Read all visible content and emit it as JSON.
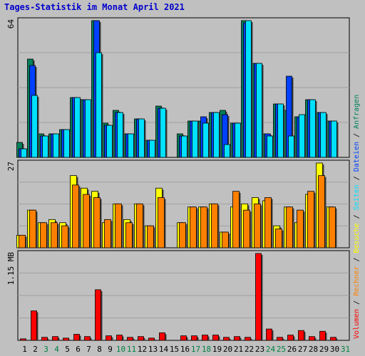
{
  "title": "Tages-Statistik im Monat April 2021",
  "colors": {
    "background": "#c0c0c0",
    "plot_bg": "#c0c0c0",
    "grid": "#a0a0a0",
    "anfragen": "#00805a",
    "dateien": "#0040ff",
    "seiten": "#00e0ff",
    "besuche": "#ffff00",
    "rechner": "#ff8000",
    "volumen": "#ff0000",
    "title": "#0000cc",
    "weekday": "#000000",
    "weekend": "#008040"
  },
  "legend": {
    "volumen": "Volumen",
    "rechner": "Rechner",
    "besuche": "Besuche",
    "seiten": "Seiten",
    "dateien": "Dateien",
    "anfragen": "Anfragen",
    "sep": " / "
  },
  "chart_data": [
    {
      "type": "bar",
      "title": "Tages-Statistik im Monat April 2021",
      "ymax_label": "64",
      "ylim": [
        0,
        64
      ],
      "grid": true,
      "categories": [
        "1",
        "2",
        "3",
        "4",
        "5",
        "6",
        "7",
        "8",
        "9",
        "10",
        "11",
        "12",
        "13",
        "14",
        "15",
        "16",
        "17",
        "18",
        "19",
        "20",
        "21",
        "22",
        "23",
        "24",
        "25",
        "26",
        "27",
        "28",
        "29",
        "30",
        "31"
      ],
      "weekend": [
        false,
        false,
        true,
        true,
        false,
        false,
        false,
        false,
        false,
        true,
        true,
        false,
        false,
        false,
        false,
        false,
        true,
        true,
        false,
        false,
        false,
        false,
        false,
        true,
        true,
        false,
        false,
        false,
        false,
        false,
        true
      ],
      "series": [
        {
          "name": "Anfragen",
          "color_key": "anfragen",
          "values": [
            7,
            46,
            11,
            11,
            13,
            28,
            27,
            64,
            16,
            22,
            11,
            18,
            8,
            24,
            0,
            11,
            17,
            17,
            21,
            22,
            16,
            64,
            44,
            11,
            25,
            22,
            19,
            27,
            21,
            17,
            0
          ]
        },
        {
          "name": "Dateien",
          "color_key": "dateien",
          "values": [
            4,
            43,
            10,
            11,
            13,
            28,
            27,
            64,
            15,
            21,
            11,
            18,
            8,
            23,
            0,
            10,
            17,
            19,
            21,
            20,
            16,
            63,
            44,
            11,
            25,
            38,
            19,
            27,
            21,
            17,
            0
          ]
        },
        {
          "name": "Seiten",
          "color_key": "seiten",
          "values": [
            4,
            29,
            10,
            11,
            13,
            28,
            27,
            49,
            15,
            21,
            11,
            18,
            8,
            23,
            0,
            10,
            17,
            16,
            21,
            6,
            16,
            64,
            44,
            10,
            25,
            10,
            20,
            27,
            21,
            17,
            0
          ]
        }
      ]
    },
    {
      "type": "bar",
      "ymax_label": "27",
      "ylim": [
        0,
        27
      ],
      "grid": true,
      "categories": [
        "1",
        "2",
        "3",
        "4",
        "5",
        "6",
        "7",
        "8",
        "9",
        "10",
        "11",
        "12",
        "13",
        "14",
        "15",
        "16",
        "17",
        "18",
        "19",
        "20",
        "21",
        "22",
        "23",
        "24",
        "25",
        "26",
        "27",
        "28",
        "29",
        "30",
        "31"
      ],
      "series": [
        {
          "name": "Besuche",
          "color_key": "besuche",
          "values": [
            4,
            12,
            8,
            9,
            8,
            23,
            19,
            18,
            8,
            14,
            9,
            14,
            7,
            19,
            0,
            8,
            13,
            13,
            14,
            5,
            13,
            14,
            16,
            15,
            7,
            13,
            8,
            17,
            27,
            13,
            0
          ]
        },
        {
          "name": "Rechner",
          "color_key": "rechner",
          "values": [
            4,
            12,
            8,
            8,
            7,
            20,
            17,
            16,
            9,
            14,
            8,
            14,
            7,
            16,
            0,
            8,
            13,
            13,
            14,
            5,
            18,
            12,
            14,
            16,
            6,
            13,
            12,
            18,
            23,
            13,
            0
          ]
        }
      ]
    },
    {
      "type": "bar",
      "ymax_label": "1.15 MB",
      "ylim": [
        0,
        1.15
      ],
      "grid": true,
      "categories": [
        "1",
        "2",
        "3",
        "4",
        "5",
        "6",
        "7",
        "8",
        "9",
        "10",
        "11",
        "12",
        "13",
        "14",
        "15",
        "16",
        "17",
        "18",
        "19",
        "20",
        "21",
        "22",
        "23",
        "24",
        "25",
        "26",
        "27",
        "28",
        "29",
        "30",
        "31"
      ],
      "series": [
        {
          "name": "Volumen",
          "color_key": "volumen",
          "values": [
            0.02,
            0.39,
            0.04,
            0.05,
            0.03,
            0.08,
            0.05,
            0.67,
            0.06,
            0.07,
            0.04,
            0.05,
            0.03,
            0.1,
            0,
            0.06,
            0.06,
            0.07,
            0.07,
            0.04,
            0.05,
            0.04,
            1.15,
            0.15,
            0.04,
            0.07,
            0.13,
            0.05,
            0.12,
            0.04,
            0
          ]
        }
      ]
    }
  ]
}
